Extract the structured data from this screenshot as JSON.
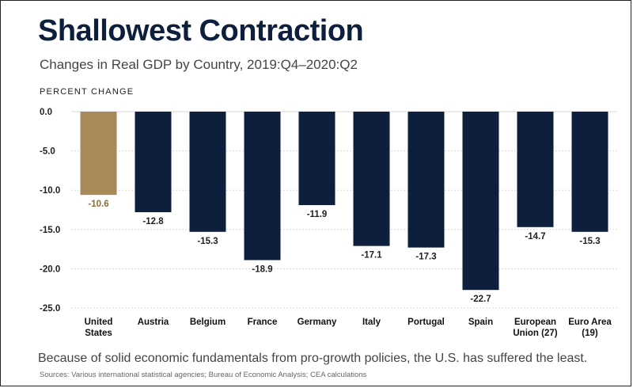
{
  "title": "Shallowest Contraction",
  "subtitle": "Changes in Real GDP by Country, 2019:Q4–2020:Q2",
  "footer": {
    "note": "Because of solid economic fundamentals from pro-growth policies, the U.S. has suffered the least.",
    "sources": "Sources: Various international statistical agencies; Bureau of Economic Analysis; CEA calculations"
  },
  "colors": {
    "highlight": "#a8895a",
    "bar": "#0d1f3c",
    "highlight_label": "#8a6d3b",
    "label": "#222222"
  },
  "chart_data": {
    "type": "bar",
    "title": "Shallowest Contraction",
    "subtitle": "Changes in Real GDP by Country, 2019:Q4–2020:Q2",
    "ylabel": "PERCENT CHANGE",
    "xlabel": "",
    "ylim": [
      -25,
      0
    ],
    "yticks": [
      0,
      -5,
      -10,
      -15,
      -20,
      -25
    ],
    "ytick_labels": [
      "0.0",
      "-5.0",
      "-10.0",
      "-15.0",
      "-20.0",
      "-25.0"
    ],
    "grid": true,
    "categories": [
      [
        "United",
        "States"
      ],
      [
        "Austria"
      ],
      [
        "Belgium"
      ],
      [
        "France"
      ],
      [
        "Germany"
      ],
      [
        "Italy"
      ],
      [
        "Portugal"
      ],
      [
        "Spain"
      ],
      [
        "European",
        "Union (27)"
      ],
      [
        "Euro Area",
        "(19)"
      ]
    ],
    "values": [
      -10.6,
      -12.8,
      -15.3,
      -18.9,
      -11.9,
      -17.1,
      -17.3,
      -22.7,
      -14.7,
      -15.3
    ],
    "value_labels": [
      "-10.6",
      "-12.8",
      "-15.3",
      "-18.9",
      "-11.9",
      "-17.1",
      "-17.3",
      "-22.7",
      "-14.7",
      "-15.3"
    ],
    "highlight_index": 0
  }
}
